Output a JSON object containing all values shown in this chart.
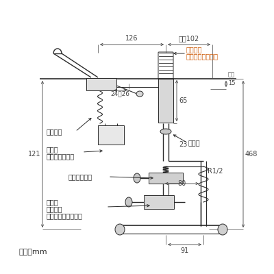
{
  "bg_color": "#ffffff",
  "lc": "#2a2a2a",
  "dc": "#444444",
  "orange": "#cc5500",
  "annotations": {
    "unit": "単位：mm",
    "dim_126": "126",
    "dim_102": "最小102",
    "dim_24_26": "24～26",
    "dim_121": "121",
    "dim_65": "65",
    "dim_23": "23",
    "dim_15max": "最大",
    "dim_15": "15",
    "dim_80": "80",
    "dim_468": "468",
    "dim_91": "91",
    "dim_r12": "R1/2",
    "label_temp1": "温度調節",
    "label_temp2": "（安全ボタン付）",
    "label_auto": "自動水栓",
    "label_drive1": "駆動部",
    "label_drive2": "電磁弁・乾電池",
    "label_pelican": "ペンリーカン",
    "label_stop1": "止水、",
    "label_stop2": "流量調節",
    "label_stop3": "逆止弁・ストレーナ",
    "label_thermo": "サーモ"
  }
}
